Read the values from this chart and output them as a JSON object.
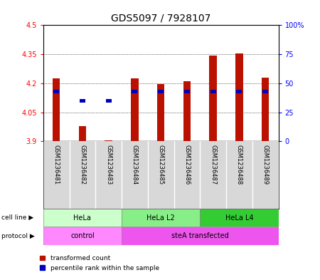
{
  "title": "GDS5097 / 7928107",
  "samples": [
    "GSM1236481",
    "GSM1236482",
    "GSM1236483",
    "GSM1236484",
    "GSM1236485",
    "GSM1236486",
    "GSM1236487",
    "GSM1236488",
    "GSM1236489"
  ],
  "red_values": [
    4.225,
    3.98,
    3.905,
    4.225,
    4.195,
    4.21,
    4.345,
    4.355,
    4.23
  ],
  "blue_values": [
    43,
    35,
    35,
    43,
    43,
    43,
    43,
    43,
    43
  ],
  "ylim_left": [
    3.9,
    4.5
  ],
  "ylim_right": [
    0,
    100
  ],
  "yticks_left": [
    3.9,
    4.05,
    4.2,
    4.35,
    4.5
  ],
  "yticks_right": [
    0,
    25,
    50,
    75,
    100
  ],
  "ytick_labels_left": [
    "3.9",
    "4.05",
    "4.2",
    "4.35",
    "4.5"
  ],
  "ytick_labels_right": [
    "0",
    "25",
    "50",
    "75",
    "100%"
  ],
  "cell_line_groups": [
    {
      "label": "HeLa",
      "start": 0,
      "end": 3,
      "color": "#ccffcc"
    },
    {
      "label": "HeLa L2",
      "start": 3,
      "end": 6,
      "color": "#88ee88"
    },
    {
      "label": "HeLa L4",
      "start": 6,
      "end": 9,
      "color": "#33cc33"
    }
  ],
  "protocol_groups": [
    {
      "label": "control",
      "start": 0,
      "end": 3,
      "color": "#ff88ff"
    },
    {
      "label": "steA transfected",
      "start": 3,
      "end": 9,
      "color": "#ee55ee"
    }
  ],
  "bar_bottom": 3.9,
  "red_color": "#bb1100",
  "blue_color": "#0000bb",
  "bg_color": "#d8d8d8",
  "title_fontsize": 10
}
